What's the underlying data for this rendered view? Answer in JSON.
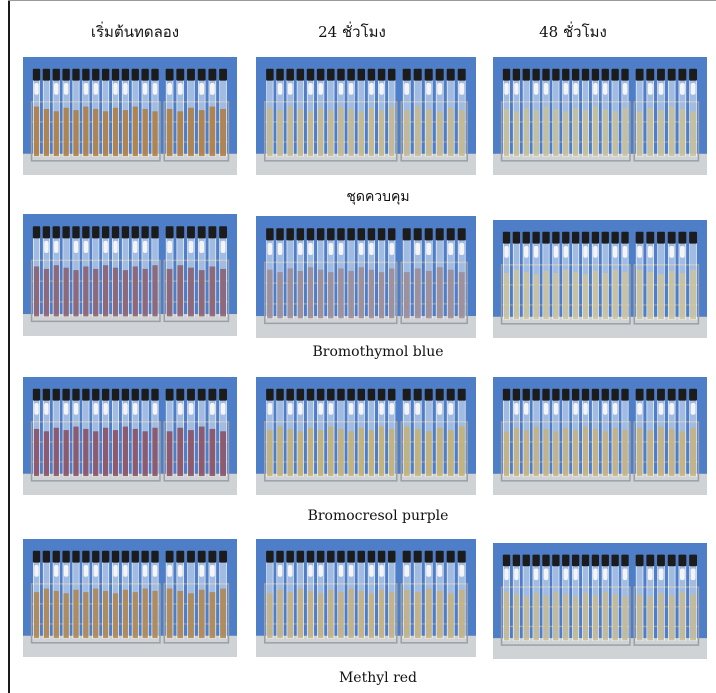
{
  "columns": [
    "เริ่มต้นทดลอง",
    "24 ชั่วโมง",
    "48 ชั่วโมง"
  ],
  "rows": [
    {
      "label": "ชุดควบคุม",
      "tints": [
        "#b07a3a",
        "#c7b98a",
        "#c9bf95"
      ]
    },
    {
      "label": "Bromothymol blue",
      "tints": [
        "#8a5a6a",
        "#9c8a90",
        "#cfc39a"
      ]
    },
    {
      "label": "Bromocresol purple",
      "tints": [
        "#8a4a5a",
        "#c6b070",
        "#c8b27a"
      ]
    },
    {
      "label": "Methyl red",
      "tints": [
        "#b08448",
        "#c8b27e",
        "#c7ba90"
      ]
    }
  ],
  "photo_background": "#4f7ec9"
}
